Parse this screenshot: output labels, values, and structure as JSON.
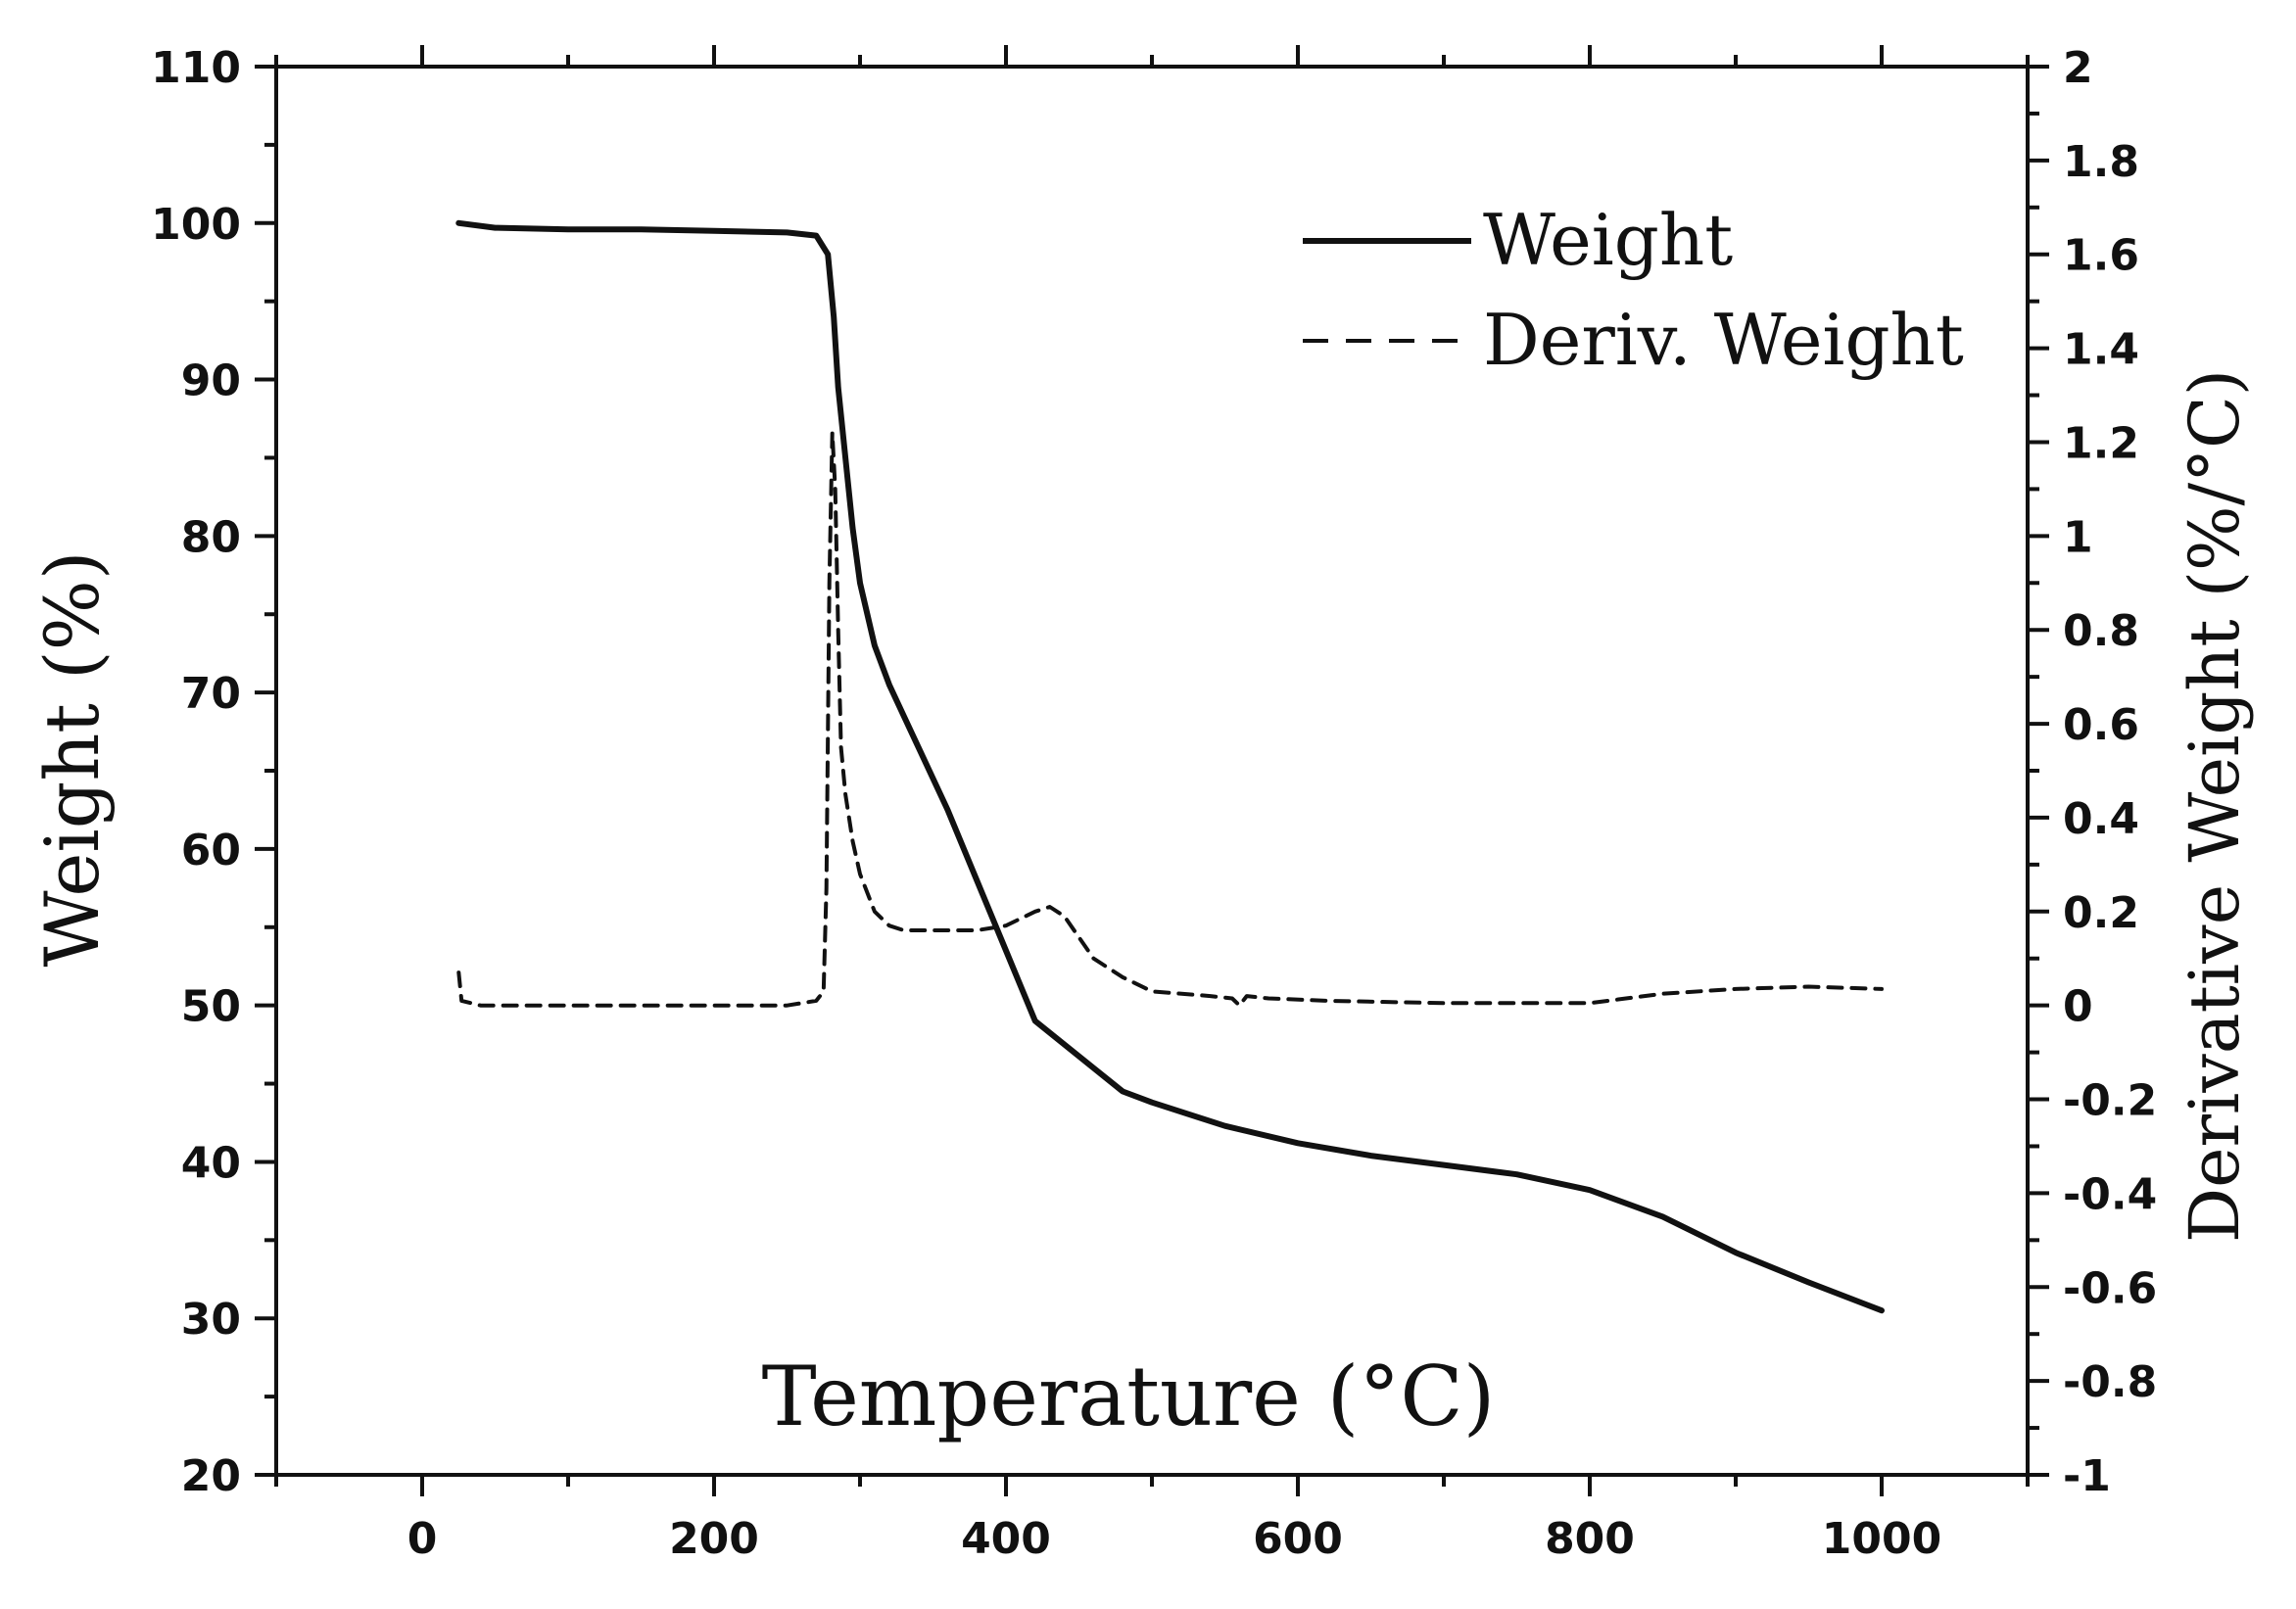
{
  "chart_data": {
    "type": "line",
    "title": "",
    "xlabel": "Temperature (°C)",
    "ylabel": "Weight (%)",
    "y2label": "Derivative Weight (%/°C)",
    "xlim": [
      -100,
      1100
    ],
    "ylim": [
      20,
      110
    ],
    "y2lim": [
      -1,
      2
    ],
    "x_ticks": [
      0,
      200,
      400,
      600,
      800,
      1000
    ],
    "y_ticks": [
      20,
      30,
      40,
      50,
      60,
      70,
      80,
      90,
      100,
      110
    ],
    "y2_ticks": [
      -1,
      -0.8,
      -0.6,
      -0.4,
      -0.2,
      0,
      0.2,
      0.4,
      0.6,
      0.8,
      1,
      1.2,
      1.4,
      1.6,
      1.8,
      2
    ],
    "y2_tick_labels": [
      "-1",
      "-0.8",
      "-0.6",
      "-0.4",
      "-0.2",
      "0",
      "0.2",
      "0.4",
      "0.6",
      "0.8",
      "1",
      "1.2",
      "1.4",
      "1.6",
      "1.8",
      "2"
    ],
    "legend_position": "top-right",
    "grid": false,
    "series": [
      {
        "name": "Weight",
        "axis": "left",
        "style": "solid",
        "x": [
          25,
          50,
          100,
          150,
          200,
          250,
          270,
          278,
          282,
          285,
          290,
          295,
          300,
          310,
          320,
          330,
          340,
          360,
          380,
          400,
          420,
          440,
          460,
          480,
          500,
          550,
          600,
          650,
          700,
          750,
          800,
          850,
          900,
          950,
          1000
        ],
        "y": [
          100.0,
          99.7,
          99.6,
          99.6,
          99.5,
          99.4,
          99.2,
          98.0,
          94.0,
          89.5,
          85.0,
          80.5,
          77.0,
          73.0,
          70.5,
          68.5,
          66.5,
          62.5,
          58.0,
          53.5,
          49.0,
          47.5,
          46.0,
          44.5,
          43.8,
          42.3,
          41.2,
          40.4,
          39.8,
          39.2,
          38.2,
          36.5,
          34.2,
          32.3,
          30.5
        ]
      },
      {
        "name": "Deriv. Weight",
        "axis": "right",
        "style": "dashed",
        "x": [
          25,
          27,
          40,
          100,
          200,
          250,
          270,
          275,
          277,
          279,
          281,
          283,
          285,
          287,
          290,
          295,
          300,
          310,
          320,
          330,
          340,
          360,
          380,
          400,
          420,
          430,
          440,
          460,
          480,
          500,
          540,
          555,
          560,
          565,
          580,
          620,
          700,
          800,
          850,
          900,
          950,
          1000
        ],
        "y": [
          0.07,
          0.01,
          0.0,
          0.0,
          0.0,
          0.0,
          0.01,
          0.03,
          0.25,
          0.9,
          1.22,
          1.1,
          0.8,
          0.55,
          0.45,
          0.35,
          0.28,
          0.2,
          0.17,
          0.16,
          0.16,
          0.16,
          0.16,
          0.17,
          0.2,
          0.21,
          0.19,
          0.1,
          0.06,
          0.03,
          0.02,
          0.015,
          0.0,
          0.02,
          0.015,
          0.01,
          0.005,
          0.005,
          0.025,
          0.035,
          0.04,
          0.035
        ]
      }
    ]
  }
}
